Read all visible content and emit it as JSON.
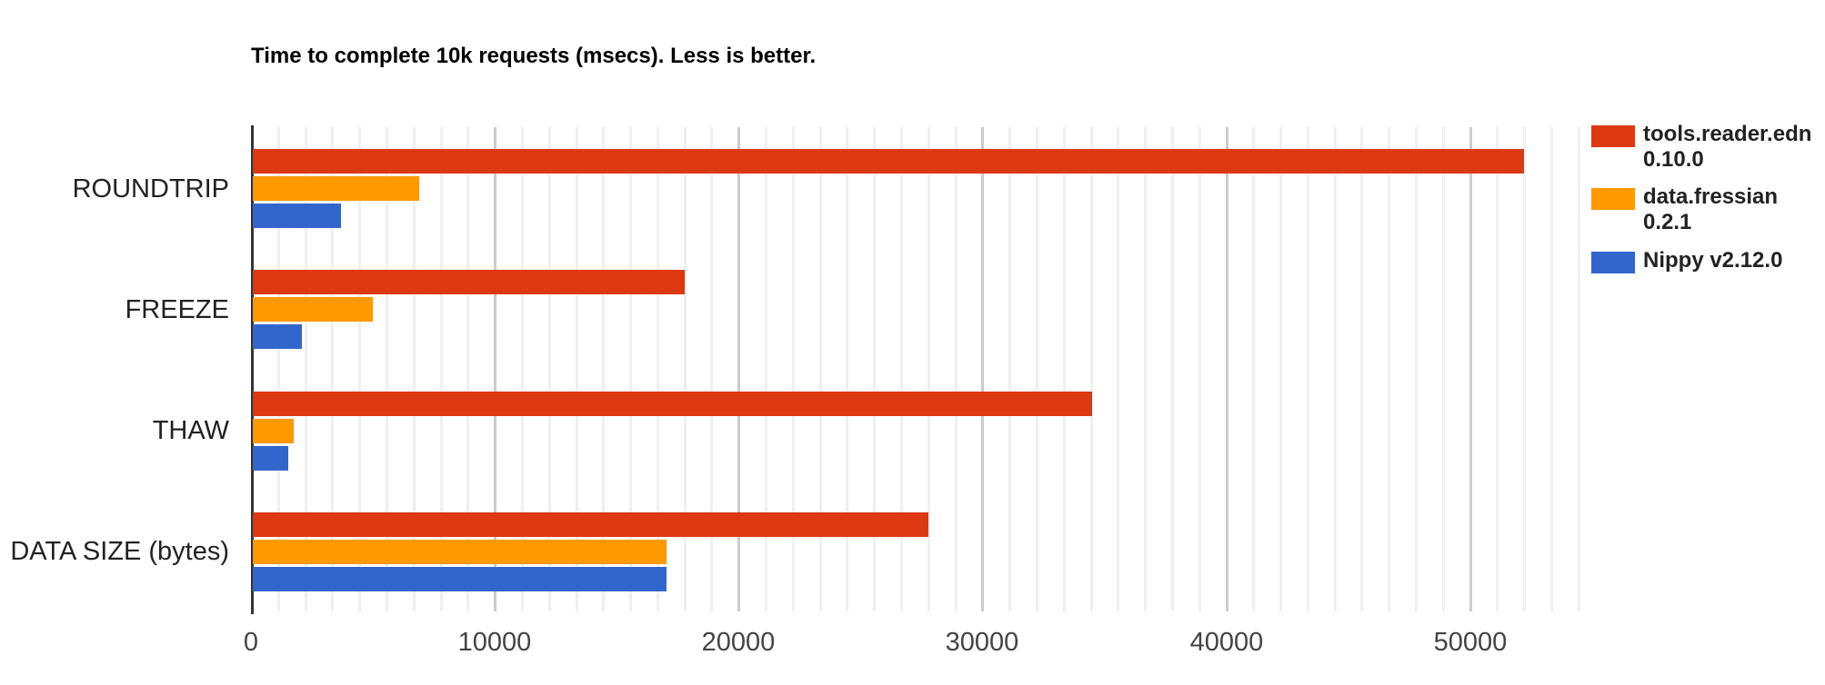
{
  "title": "Time to complete 10k requests (msecs). Less is better.",
  "chart_data": {
    "type": "bar",
    "orientation": "horizontal",
    "title": "Time to complete 10k requests (msecs). Less is better.",
    "categories": [
      "ROUNDTRIP",
      "FREEZE",
      "THAW",
      "DATA SIZE (bytes)"
    ],
    "series": [
      {
        "name": "tools.reader.edn 0.10.0",
        "color": "#DC3912",
        "values": [
          52200,
          17800,
          34500,
          27800
        ]
      },
      {
        "name": "data.fressian 0.2.1",
        "color": "#FF9900",
        "values": [
          6900,
          5000,
          1750,
          17050
        ]
      },
      {
        "name": "Nippy v2.12.0",
        "color": "#3366CC",
        "values": [
          3700,
          2100,
          1520,
          17050
        ]
      }
    ],
    "xlabel": "",
    "ylabel": "",
    "xlim": [
      0,
      54600
    ],
    "x_ticks": [
      0,
      10000,
      20000,
      30000,
      40000,
      50000
    ],
    "x_tick_labels": [
      "0",
      "10000",
      "20000",
      "30000",
      "40000",
      "50000"
    ],
    "minor_gridlines_per_major": 9,
    "grid": true,
    "legend_position": "right"
  },
  "legend": {
    "items": [
      {
        "lines": [
          "tools.reader.edn",
          "0.10.0"
        ],
        "color": "#DC3912"
      },
      {
        "lines": [
          "data.fressian",
          "0.2.1"
        ],
        "color": "#FF9900"
      },
      {
        "lines": [
          "Nippy v2.12.0"
        ],
        "color": "#3366CC"
      }
    ]
  },
  "colors": {
    "axis_line": "#333333",
    "major_gridline": "#cccccc",
    "minor_gridline": "#f0f0f0",
    "tick_text": "#444444",
    "category_text": "#222222",
    "title_text": "#000000"
  }
}
